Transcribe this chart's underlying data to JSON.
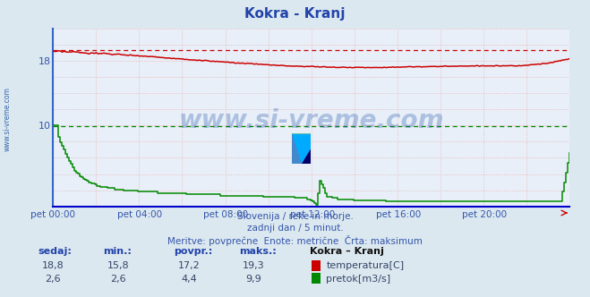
{
  "title": "Kokra - Kranj",
  "bg_color": "#dce8f0",
  "plot_bg_color": "#e8eff8",
  "temp_color": "#cc0000",
  "flow_color": "#008800",
  "dashed_temp_max": 19.3,
  "dashed_flow_max": 9.9,
  "x_labels": [
    "pet 00:00",
    "pet 04:00",
    "pet 08:00",
    "pet 12:00",
    "pet 16:00",
    "pet 20:00"
  ],
  "x_ticks_idx": [
    0,
    48,
    96,
    144,
    192,
    240
  ],
  "total_points": 288,
  "y_min": 0,
  "y_max": 22,
  "y_ticks": [
    10,
    18
  ],
  "subtitle1": "Slovenija / reke in morje.",
  "subtitle2": "zadnji dan / 5 minut.",
  "subtitle3": "Meritve: povprečne  Enote: metrične  Črta: maksimum",
  "station": "Kokra – Kranj",
  "label_temp": "temperatura[C]",
  "label_flow": "pretok[m3/s]",
  "watermark": "www.si-vreme.com",
  "stat_headers": [
    "sedaj:",
    "min.:",
    "povpr.:",
    "maks.:"
  ],
  "temp_stats": [
    "18,8",
    "15,8",
    "17,2",
    "19,3"
  ],
  "flow_stats": [
    "2,6",
    "2,6",
    "4,4",
    "9,9"
  ],
  "left_spine_color": "#3366cc",
  "bottom_spine_color": "#0000cc",
  "grid_color": "#e8b0b0",
  "tick_label_color": "#3355aa",
  "text_color": "#3355aa",
  "side_label": "www.si-vreme.com"
}
